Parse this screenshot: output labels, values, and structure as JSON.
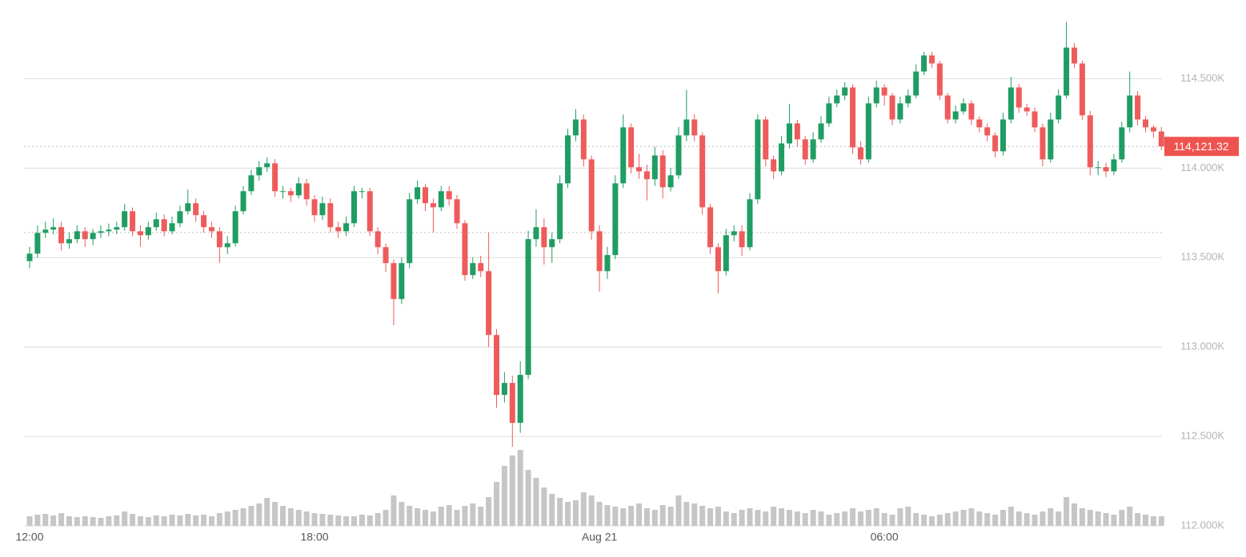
{
  "chart_data": {
    "type": "candlestick",
    "categories": [
      "12:00",
      null,
      null,
      null,
      null,
      null,
      null,
      null,
      null,
      null,
      null,
      null,
      null,
      null,
      null,
      null,
      null,
      null,
      null,
      null,
      null,
      null,
      null,
      null,
      null,
      null,
      null,
      null,
      null,
      null,
      null,
      null,
      null,
      null,
      null,
      null,
      "18:00",
      null,
      null,
      null,
      null,
      null,
      null,
      null,
      null,
      null,
      null,
      null,
      null,
      null,
      null,
      null,
      null,
      null,
      null,
      null,
      null,
      null,
      null,
      null,
      null,
      null,
      null,
      null,
      null,
      null,
      null,
      null,
      null,
      null,
      null,
      null,
      "Aug 21",
      null,
      null,
      null,
      null,
      null,
      null,
      null,
      null,
      null,
      null,
      null,
      null,
      null,
      null,
      null,
      null,
      null,
      null,
      null,
      null,
      null,
      null,
      null,
      null,
      null,
      null,
      null,
      null,
      null,
      null,
      null,
      null,
      null,
      null,
      null,
      "06:00",
      null,
      null,
      null,
      null,
      null,
      null,
      null,
      null,
      null,
      null,
      null,
      null,
      null,
      null,
      null,
      null,
      null,
      null,
      null,
      null,
      null,
      null,
      null,
      null,
      null,
      null,
      null,
      null,
      null,
      null,
      null,
      null,
      null,
      null,
      null
    ],
    "candles": [
      [
        113480,
        113560,
        113440,
        113522
      ],
      [
        113522,
        113680,
        113500,
        113638
      ],
      [
        113638,
        113700,
        113610,
        113656
      ],
      [
        113656,
        113720,
        113630,
        113670
      ],
      [
        113670,
        113700,
        113540,
        113580
      ],
      [
        113580,
        113640,
        113550,
        113603
      ],
      [
        113603,
        113680,
        113580,
        113647
      ],
      [
        113647,
        113670,
        113560,
        113603
      ],
      [
        113603,
        113660,
        113570,
        113638
      ],
      [
        113638,
        113680,
        113610,
        113647
      ],
      [
        113647,
        113690,
        113620,
        113656
      ],
      [
        113656,
        113700,
        113630,
        113670
      ],
      [
        113670,
        113800,
        113650,
        113759
      ],
      [
        113759,
        113780,
        113620,
        113647
      ],
      [
        113647,
        113680,
        113560,
        113625
      ],
      [
        113625,
        113700,
        113600,
        113670
      ],
      [
        113670,
        113750,
        113650,
        113714
      ],
      [
        113714,
        113740,
        113620,
        113647
      ],
      [
        113647,
        113730,
        113630,
        113692
      ],
      [
        113692,
        113790,
        113670,
        113759
      ],
      [
        113759,
        113880,
        113740,
        113804
      ],
      [
        113804,
        113830,
        113700,
        113737
      ],
      [
        113737,
        113760,
        113640,
        113670
      ],
      [
        113670,
        113700,
        113610,
        113647
      ],
      [
        113647,
        113670,
        113470,
        113558
      ],
      [
        113558,
        113620,
        113520,
        113580
      ],
      [
        113580,
        113790,
        113560,
        113759
      ],
      [
        113759,
        113900,
        113740,
        113871
      ],
      [
        113871,
        113990,
        113850,
        113960
      ],
      [
        113960,
        114040,
        113930,
        114005
      ],
      [
        114005,
        114060,
        113980,
        114027
      ],
      [
        114027,
        114050,
        113840,
        113871
      ],
      [
        113871,
        113900,
        113830,
        113871
      ],
      [
        113871,
        113890,
        113810,
        113848
      ],
      [
        113848,
        113950,
        113830,
        113915
      ],
      [
        113915,
        113940,
        113790,
        113826
      ],
      [
        113826,
        113850,
        113700,
        113737
      ],
      [
        113737,
        113840,
        113710,
        113804
      ],
      [
        113804,
        113830,
        113640,
        113670
      ],
      [
        113670,
        113700,
        113610,
        113647
      ],
      [
        113647,
        113730,
        113620,
        113692
      ],
      [
        113692,
        113900,
        113670,
        113871
      ],
      [
        113871,
        113890,
        113830,
        113871
      ],
      [
        113871,
        113890,
        113620,
        113647
      ],
      [
        113647,
        113670,
        113520,
        113558
      ],
      [
        113558,
        113580,
        113420,
        113469
      ],
      [
        113469,
        113490,
        113121,
        113268
      ],
      [
        113268,
        113500,
        113240,
        113469
      ],
      [
        113469,
        113860,
        113440,
        113826
      ],
      [
        113826,
        113930,
        113800,
        113893
      ],
      [
        113893,
        113910,
        113760,
        113804
      ],
      [
        113804,
        113830,
        113640,
        113781
      ],
      [
        113781,
        113900,
        113760,
        113871
      ],
      [
        113871,
        113900,
        113790,
        113826
      ],
      [
        113826,
        113850,
        113660,
        113692
      ],
      [
        113692,
        113710,
        113370,
        113402
      ],
      [
        113402,
        113500,
        113380,
        113469
      ],
      [
        113469,
        113510,
        113390,
        113424
      ],
      [
        113424,
        113640,
        113000,
        113067
      ],
      [
        113067,
        113100,
        112660,
        112732
      ],
      [
        112732,
        112860,
        112690,
        112799
      ],
      [
        112799,
        112840,
        112442,
        112576
      ],
      [
        112576,
        112920,
        112520,
        112844
      ],
      [
        112844,
        113650,
        112820,
        113603
      ],
      [
        113603,
        113770,
        113560,
        113670
      ],
      [
        113670,
        113720,
        113460,
        113558
      ],
      [
        113558,
        113640,
        113470,
        113603
      ],
      [
        113603,
        113960,
        113580,
        113915
      ],
      [
        113915,
        114220,
        113890,
        114183
      ],
      [
        114183,
        114330,
        114150,
        114272
      ],
      [
        114272,
        114300,
        114010,
        114049
      ],
      [
        114049,
        114070,
        113600,
        113647
      ],
      [
        113647,
        113680,
        113310,
        113424
      ],
      [
        113424,
        113560,
        113380,
        113514
      ],
      [
        113514,
        113960,
        113490,
        113915
      ],
      [
        113915,
        114300,
        113890,
        114228
      ],
      [
        114228,
        114250,
        113970,
        114005
      ],
      [
        114005,
        114080,
        113940,
        113982
      ],
      [
        113982,
        114020,
        113820,
        113938
      ],
      [
        113938,
        114120,
        113900,
        114071
      ],
      [
        114071,
        114100,
        113830,
        113893
      ],
      [
        113893,
        114000,
        113870,
        113960
      ],
      [
        113960,
        114230,
        113940,
        114183
      ],
      [
        114183,
        114438,
        114150,
        114272
      ],
      [
        114272,
        114300,
        114150,
        114183
      ],
      [
        114183,
        114200,
        113740,
        113781
      ],
      [
        113781,
        113800,
        113520,
        113558
      ],
      [
        113558,
        113580,
        113299,
        113424
      ],
      [
        113424,
        113660,
        113400,
        113625
      ],
      [
        113625,
        113680,
        113590,
        113647
      ],
      [
        113647,
        113680,
        113510,
        113558
      ],
      [
        113558,
        113860,
        113540,
        113826
      ],
      [
        113826,
        114300,
        113800,
        114272
      ],
      [
        114272,
        114290,
        114010,
        114049
      ],
      [
        114049,
        114070,
        113940,
        113982
      ],
      [
        113982,
        114180,
        113960,
        114138
      ],
      [
        114138,
        114360,
        114110,
        114250
      ],
      [
        114250,
        114270,
        114120,
        114161
      ],
      [
        114161,
        114180,
        114020,
        114049
      ],
      [
        114049,
        114200,
        114030,
        114161
      ],
      [
        114161,
        114290,
        114140,
        114250
      ],
      [
        114250,
        114400,
        114230,
        114362
      ],
      [
        114362,
        114440,
        114340,
        114406
      ],
      [
        114406,
        114480,
        114380,
        114451
      ],
      [
        114451,
        114470,
        114080,
        114116
      ],
      [
        114116,
        114150,
        114020,
        114049
      ],
      [
        114049,
        114400,
        114030,
        114362
      ],
      [
        114362,
        114490,
        114340,
        114451
      ],
      [
        114451,
        114470,
        114350,
        114406
      ],
      [
        114406,
        114420,
        114240,
        114272
      ],
      [
        114272,
        114400,
        114250,
        114362
      ],
      [
        114362,
        114440,
        114340,
        114406
      ],
      [
        114406,
        114580,
        114390,
        114540
      ],
      [
        114540,
        114650,
        114520,
        114630
      ],
      [
        114630,
        114650,
        114560,
        114585
      ],
      [
        114585,
        114600,
        114380,
        114406
      ],
      [
        114406,
        114420,
        114250,
        114272
      ],
      [
        114272,
        114350,
        114250,
        114317
      ],
      [
        114317,
        114390,
        114300,
        114362
      ],
      [
        114362,
        114380,
        114240,
        114272
      ],
      [
        114272,
        114290,
        114200,
        114228
      ],
      [
        114228,
        114250,
        114150,
        114183
      ],
      [
        114183,
        114200,
        114060,
        114094
      ],
      [
        114094,
        114310,
        114070,
        114272
      ],
      [
        114272,
        114510,
        114250,
        114451
      ],
      [
        114451,
        114470,
        114310,
        114339
      ],
      [
        114339,
        114360,
        114290,
        114317
      ],
      [
        114317,
        114340,
        114200,
        114228
      ],
      [
        114228,
        114250,
        114010,
        114049
      ],
      [
        114049,
        114310,
        114030,
        114272
      ],
      [
        114272,
        114440,
        114250,
        114406
      ],
      [
        114406,
        114817,
        114390,
        114674
      ],
      [
        114674,
        114700,
        114560,
        114585
      ],
      [
        114585,
        114600,
        114270,
        114295
      ],
      [
        114295,
        114320,
        113960,
        114005
      ],
      [
        114005,
        114040,
        113960,
        114005
      ],
      [
        114005,
        114030,
        113950,
        113982
      ],
      [
        113982,
        114080,
        113960,
        114049
      ],
      [
        114049,
        114260,
        114030,
        114228
      ],
      [
        114228,
        114540,
        114200,
        114406
      ],
      [
        114406,
        114430,
        114240,
        114272
      ],
      [
        114272,
        114290,
        114200,
        114228
      ],
      [
        114228,
        114240,
        114170,
        114205
      ],
      [
        114205,
        114230,
        114100,
        114121.32
      ]
    ],
    "volume": [
      12,
      14,
      15,
      13,
      16,
      12,
      11,
      12,
      11,
      10,
      12,
      13,
      18,
      15,
      12,
      11,
      13,
      12,
      14,
      13,
      15,
      13,
      14,
      12,
      16,
      18,
      20,
      22,
      25,
      28,
      35,
      30,
      25,
      22,
      20,
      18,
      16,
      15,
      14,
      13,
      12,
      12,
      14,
      13,
      16,
      20,
      38,
      30,
      25,
      22,
      20,
      18,
      24,
      26,
      20,
      25,
      28,
      24,
      36,
      55,
      75,
      88,
      95,
      70,
      60,
      48,
      40,
      35,
      30,
      32,
      42,
      38,
      30,
      26,
      24,
      22,
      25,
      28,
      22,
      20,
      26,
      24,
      38,
      30,
      28,
      25,
      22,
      24,
      18,
      16,
      20,
      22,
      20,
      18,
      24,
      22,
      20,
      18,
      16,
      20,
      18,
      14,
      16,
      18,
      22,
      18,
      20,
      22,
      16,
      14,
      22,
      24,
      16,
      14,
      12,
      14,
      16,
      18,
      20,
      22,
      18,
      16,
      14,
      20,
      24,
      18,
      16,
      14,
      18,
      22,
      18,
      36,
      28,
      22,
      20,
      18,
      16,
      14,
      20,
      24,
      16,
      14,
      12,
      12
    ],
    "vlim": [
      0,
      100
    ],
    "ylim": [
      112000,
      114940
    ],
    "yticks": [
      {
        "value": 112000,
        "label": "112.000K"
      },
      {
        "value": 112500,
        "label": "112.500K"
      },
      {
        "value": 113000,
        "label": "113.000K"
      },
      {
        "value": 113500,
        "label": "113.500K"
      },
      {
        "value": 114000,
        "label": "114.000K"
      },
      {
        "value": 114500,
        "label": "114.500K"
      }
    ],
    "last_price": {
      "value": 114121.32,
      "label": "114,121.32"
    },
    "ref_price": 113640,
    "grid": true,
    "up_color": "#1f9d63",
    "down_color": "#ee5b5b",
    "volume_color": "#c6c6c6",
    "tag_color": "#ef5350"
  }
}
